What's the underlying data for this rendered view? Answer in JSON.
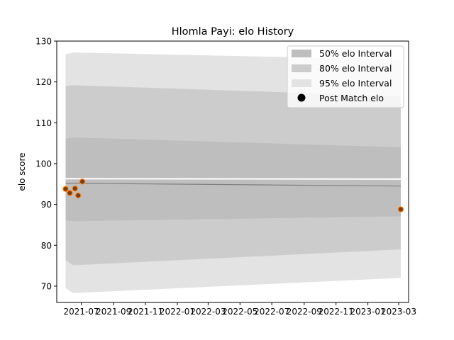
{
  "chart_data": {
    "type": "line",
    "title": "Hlomla Payi: elo History",
    "xlabel": "",
    "ylabel": "elo score",
    "xlim": [
      "2021-05-15",
      "2023-03-20"
    ],
    "ylim": [
      66,
      130
    ],
    "x_ticks": [
      "2021-07",
      "2021-09",
      "2021-11",
      "2022-01",
      "2022-03",
      "2022-05",
      "2022-07",
      "2022-09",
      "2022-11",
      "2023-01",
      "2023-03"
    ],
    "y_ticks": [
      70,
      80,
      90,
      100,
      110,
      120,
      130
    ],
    "grid": false,
    "legend_position": "top-right",
    "legend": {
      "band50": "50% elo Interval",
      "band80": "80% elo Interval",
      "band95": "95% elo Interval",
      "points": "Post Match elo"
    },
    "bands": {
      "x": [
        "2021-06-01",
        "2021-06-15",
        "2023-03-05"
      ],
      "band95": {
        "lower": [
          69.5,
          68.3,
          72.0
        ],
        "upper": [
          126.8,
          127.2,
          125.5
        ]
      },
      "band80": {
        "lower": [
          76.4,
          75.1,
          79.0
        ],
        "upper": [
          119.0,
          119.2,
          116.5
        ]
      },
      "band50": {
        "lower": [
          86.1,
          85.9,
          87.1
        ],
        "upper": [
          106.1,
          106.4,
          104.0
        ]
      }
    },
    "mean_line": {
      "x": [
        "2021-06-01",
        "2023-03-05"
      ],
      "y": [
        95.2,
        94.5
      ]
    },
    "upper_line": {
      "x": [
        "2021-06-01",
        "2023-03-05"
      ],
      "y": [
        96.3,
        96.2
      ]
    },
    "series": [
      {
        "name": "Post Match elo",
        "x": [
          "2021-06-01",
          "2021-06-09",
          "2021-06-19",
          "2021-06-25",
          "2021-07-03",
          "2023-03-05"
        ],
        "y": [
          93.8,
          92.8,
          93.9,
          92.2,
          95.6,
          88.8
        ]
      }
    ],
    "colors": {
      "band95": "#e3e3e3",
      "band80": "#cccccc",
      "band50": "#bebebe",
      "mean_line": "#7f7f7f",
      "upper_line": "#ffffff",
      "point_fill": "#7a3d10",
      "point_edge": "#ff7f0e"
    }
  }
}
